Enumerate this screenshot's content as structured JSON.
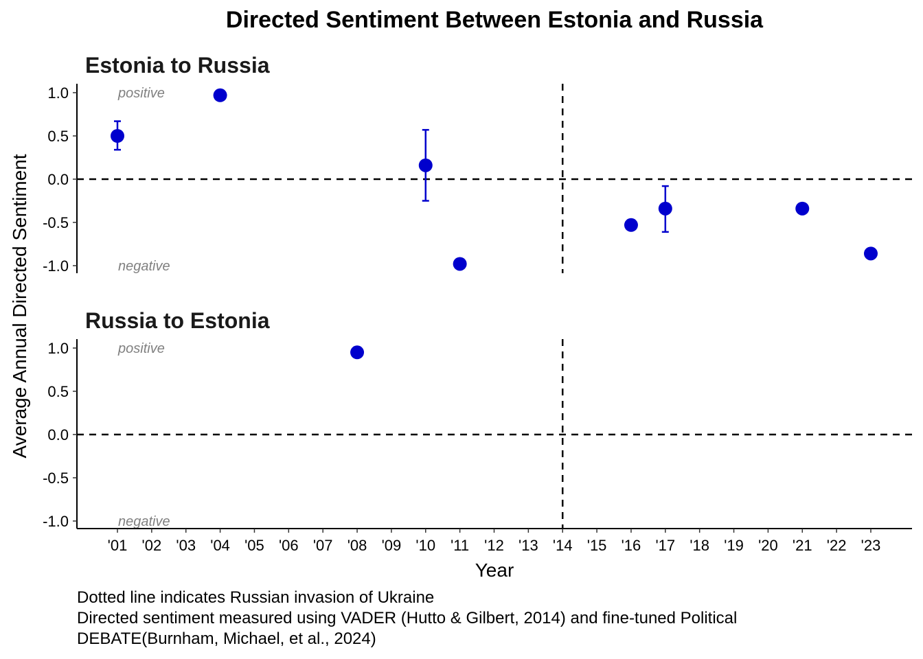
{
  "chart_data": {
    "type": "scatter",
    "title": "Directed Sentiment Between Estonia and Russia",
    "xlabel": "Year",
    "ylabel": "Average Annual Directed Sentiment",
    "x_ticks": [
      "'01",
      "'02",
      "'03",
      "'04",
      "'05",
      "'06",
      "'07",
      "'08",
      "'09",
      "'10",
      "'11",
      "'12",
      "'13",
      "'14",
      "'15",
      "'16",
      "'17",
      "'18",
      "'19",
      "'20",
      "'21",
      "'22",
      "'23"
    ],
    "y_ticks": [
      "1.0",
      "0.5",
      "0.0",
      "-0.5",
      "-1.0"
    ],
    "xlim": [
      2000.0,
      2024.2
    ],
    "ylim": [
      -1.1,
      1.1
    ],
    "hline": 0,
    "vline": 2014,
    "annotation_positive": "positive",
    "annotation_negative": "negative",
    "color": "#0000cd",
    "panels": [
      {
        "name": "Estonia to Russia",
        "points": [
          {
            "x": 2001,
            "y": 0.5,
            "ymin": 0.34,
            "ymax": 0.67
          },
          {
            "x": 2004,
            "y": 0.97
          },
          {
            "x": 2010,
            "y": 0.16,
            "ymin": -0.25,
            "ymax": 0.57
          },
          {
            "x": 2011,
            "y": -0.98
          },
          {
            "x": 2016,
            "y": -0.53
          },
          {
            "x": 2017,
            "y": -0.34,
            "ymin": -0.61,
            "ymax": -0.08
          },
          {
            "x": 2021,
            "y": -0.34
          },
          {
            "x": 2023,
            "y": -0.86
          }
        ]
      },
      {
        "name": "Russia to Estonia",
        "points": [
          {
            "x": 2008,
            "y": 0.95
          }
        ]
      }
    ]
  },
  "caption": {
    "line1": "Dotted line indicates Russian invasion of Ukraine",
    "line2": "Directed sentiment measured using VADER (Hutto & Gilbert, 2014) and fine-tuned Political",
    "line3": "DEBATE(Burnham, Michael, et al., 2024)"
  }
}
